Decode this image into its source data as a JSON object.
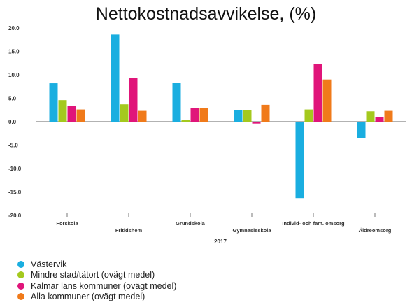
{
  "chart_data": {
    "type": "bar",
    "title": "Nettokostnadsavvikelse, (%)",
    "xlabel": "2017",
    "ylabel": "",
    "ylim": [
      -20,
      20
    ],
    "yticks": [
      "20.0",
      "15.0",
      "10.0",
      "5.0",
      "0.0",
      "-5.0",
      "-10.0",
      "-15.0",
      "-20.0"
    ],
    "categories": [
      "Förskola",
      "Fritidshem",
      "Grundskola",
      "Gymnasieskola",
      "Individ- och fam. omsorg",
      "Äldreomsorg"
    ],
    "series": [
      {
        "name": "Västervik",
        "color": "#1aaee0",
        "values": [
          8.2,
          18.6,
          8.3,
          2.5,
          -16.3,
          -3.5
        ]
      },
      {
        "name": "Mindre stad/tätort (ovägt medel)",
        "color": "#a4c91e",
        "values": [
          4.6,
          3.7,
          0.3,
          2.5,
          2.6,
          2.2
        ]
      },
      {
        "name": "Kalmar läns kommuner (ovägt medel)",
        "color": "#e0157a",
        "values": [
          3.4,
          9.4,
          2.9,
          -0.4,
          12.3,
          1.0
        ]
      },
      {
        "name": "Alla kommuner (ovägt medel)",
        "color": "#f07a1a",
        "values": [
          2.6,
          2.3,
          2.9,
          3.6,
          9.0,
          2.3
        ]
      }
    ],
    "grid": false,
    "legend_position": "bottom-left"
  }
}
